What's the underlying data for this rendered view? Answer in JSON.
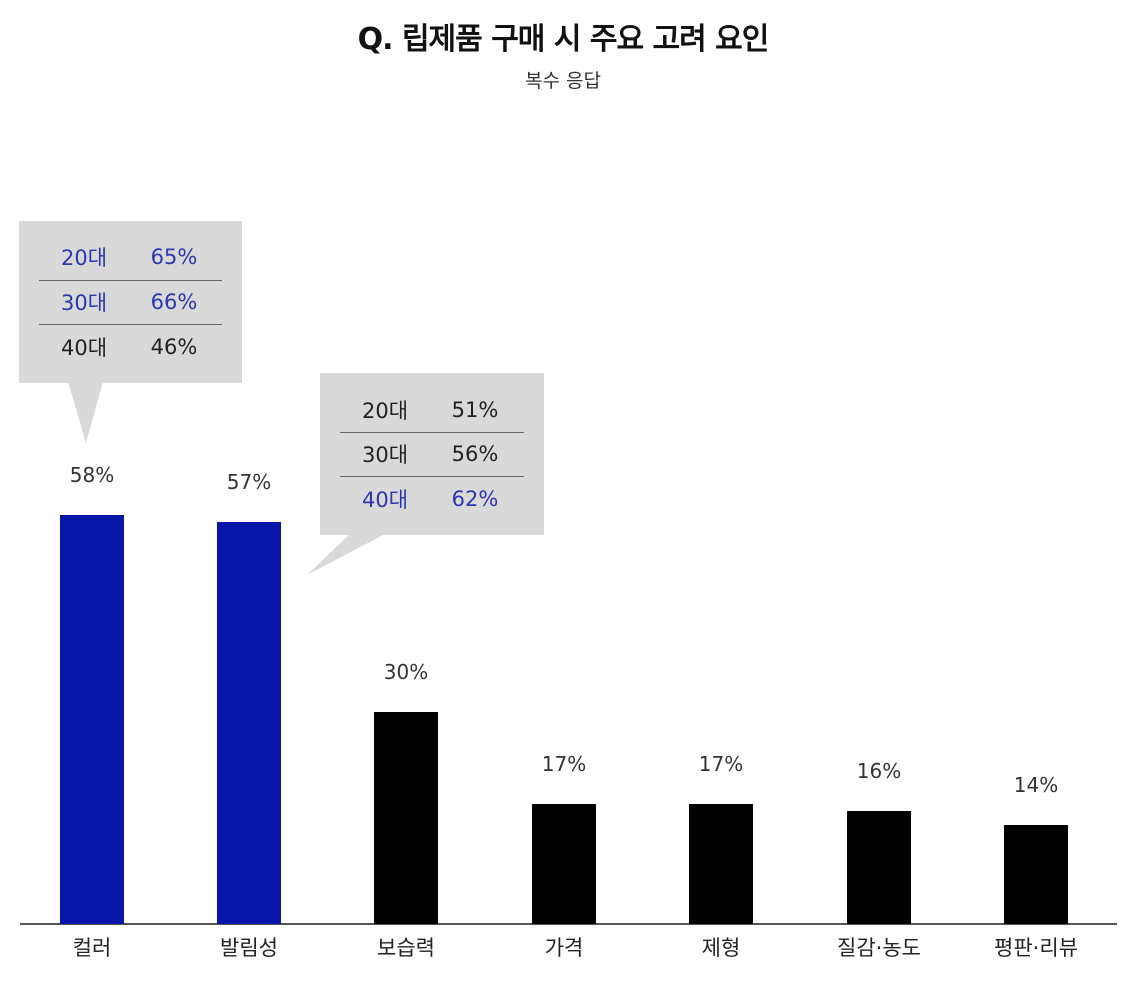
{
  "header": {
    "title": "Q. 립제품 구매 시 주요 고려 요인",
    "subtitle": "복수 응답"
  },
  "colors": {
    "highlight_bar": "#0716A8",
    "normal_bar": "#000000",
    "highlight_text": "#2B36B0",
    "callout_bg": "#D9D9D9"
  },
  "bars": [
    {
      "label": "컬러",
      "value_label": "58%",
      "highlight": true
    },
    {
      "label": "발림성",
      "value_label": "57%",
      "highlight": true
    },
    {
      "label": "보습력",
      "value_label": "30%",
      "highlight": false
    },
    {
      "label": "가격",
      "value_label": "17%",
      "highlight": false
    },
    {
      "label": "제형",
      "value_label": "17%",
      "highlight": false
    },
    {
      "label": "질감·농도",
      "value_label": "16%",
      "highlight": false
    },
    {
      "label": "평판·리뷰",
      "value_label": "14%",
      "highlight": false
    }
  ],
  "callouts": [
    {
      "target": "컬러",
      "rows": [
        {
          "age": "20대",
          "pct": "65%",
          "highlight": true
        },
        {
          "age": "30대",
          "pct": "66%",
          "highlight": true
        },
        {
          "age": "40대",
          "pct": "46%",
          "highlight": false
        }
      ]
    },
    {
      "target": "발림성",
      "rows": [
        {
          "age": "20대",
          "pct": "51%",
          "highlight": false
        },
        {
          "age": "30대",
          "pct": "56%",
          "highlight": false
        },
        {
          "age": "40대",
          "pct": "62%",
          "highlight": true
        }
      ]
    }
  ],
  "chart_data": {
    "type": "bar",
    "title": "Q. 립제품 구매 시 주요 고려 요인",
    "subtitle": "복수 응답",
    "categories": [
      "컬러",
      "발림성",
      "보습력",
      "가격",
      "제형",
      "질감·농도",
      "평판·리뷰"
    ],
    "values": [
      58,
      57,
      30,
      17,
      17,
      16,
      14
    ],
    "unit": "%",
    "xlabel": "",
    "ylabel": "",
    "ylim": [
      0,
      58
    ],
    "grid": false,
    "legend": null,
    "highlighted_categories": [
      "컬러",
      "발림성"
    ],
    "annotations": [
      {
        "category": "컬러",
        "breakdown": {
          "20대": 65,
          "30대": 66,
          "40대": 46
        }
      },
      {
        "category": "발림성",
        "breakdown": {
          "20대": 51,
          "30대": 56,
          "40대": 62
        }
      }
    ]
  }
}
